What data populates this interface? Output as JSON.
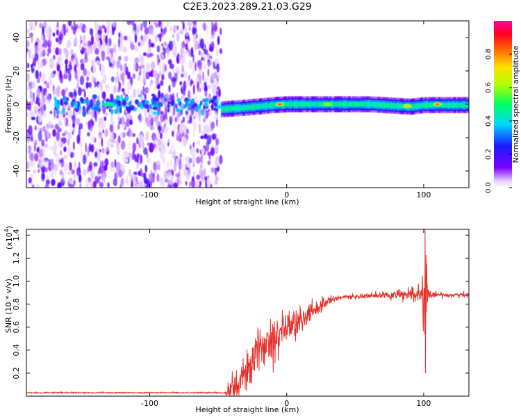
{
  "title": "C2E3.2023.289.21.03.G29",
  "chart_data": [
    {
      "type": "heatmap",
      "xlabel": "Height of straight line (km)",
      "ylabel": "Frequency (Hz)",
      "xlim": [
        -190,
        133
      ],
      "ylim": [
        -50,
        50
      ],
      "xticks": [
        -100,
        0,
        100
      ],
      "yticks": [
        -40,
        -20,
        0,
        20,
        40
      ],
      "colorbar": {
        "label": "Normalized spectral amplitude",
        "range": [
          0,
          1
        ],
        "ticks": [
          "0.0",
          "0.2",
          "0.4",
          "0.6",
          "0.8"
        ]
      },
      "noise_region": {
        "x": [
          -190,
          -48
        ],
        "y": [
          -50,
          50
        ]
      },
      "signal_band": {
        "x": [
          -48,
          133
        ],
        "center_hz": [
          [
            -48,
            -3
          ],
          [
            -30,
            -2
          ],
          [
            -10,
            -0.5
          ],
          [
            0,
            0
          ],
          [
            60,
            0
          ],
          [
            90,
            -1.5
          ],
          [
            100,
            -0.5
          ],
          [
            133,
            -0.5
          ]
        ],
        "half_width_hz": 3
      },
      "hotspots": [
        {
          "x": -5,
          "y": 0,
          "amp": 0.95
        },
        {
          "x": 110,
          "y": 0,
          "amp": 0.85
        },
        {
          "x": 88,
          "y": -1,
          "amp": 0.75
        },
        {
          "x": 30,
          "y": 0,
          "amp": 0.6
        },
        {
          "x": -130,
          "y": 0,
          "amp": 0.45
        }
      ]
    },
    {
      "type": "line",
      "xlabel": "Height of straight line (km)",
      "ylabel": "SNR (10 * v/v)",
      "scale_label": "(x10",
      "scale_exp": "4",
      "scale_close": ")",
      "xlim": [
        -190,
        133
      ],
      "ylim": [
        0,
        1.45
      ],
      "xticks": [
        -100,
        0,
        100
      ],
      "yticks": [
        0.2,
        0.4,
        0.6,
        0.8,
        1.0,
        1.2,
        1.4
      ],
      "ytick_labels": [
        "0.2",
        "0.4",
        "0.6",
        "0.8",
        "1.0",
        "1.2",
        "1.4"
      ],
      "series": [
        {
          "color": "#e8302a",
          "envelope": {
            "x": [
              -190,
              -45,
              -35,
              -30,
              -20,
              -10,
              0,
              10,
              20,
              30,
              40,
              60,
              80,
              95,
              100,
              105,
              133
            ],
            "y": [
              0.03,
              0.03,
              0.1,
              0.2,
              0.4,
              0.52,
              0.6,
              0.65,
              0.75,
              0.83,
              0.86,
              0.87,
              0.88,
              0.88,
              0.9,
              0.88,
              0.88
            ]
          },
          "spike": {
            "x": 101,
            "max": 1.45,
            "min": 0.05
          },
          "noise_scale": [
            [
              -190,
              0.005
            ],
            [
              -45,
              0.005
            ],
            [
              -40,
              0.15
            ],
            [
              -5,
              0.2
            ],
            [
              20,
              0.08
            ],
            [
              40,
              0.02
            ],
            [
              80,
              0.04
            ],
            [
              95,
              0.07
            ],
            [
              110,
              0.02
            ],
            [
              133,
              0.02
            ]
          ]
        }
      ]
    }
  ]
}
